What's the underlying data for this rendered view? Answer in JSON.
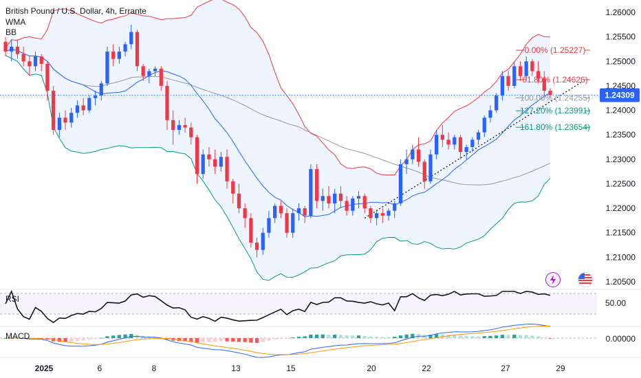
{
  "header": {
    "symbol": "British Pound / U.S. Dollar, 4h, Errante",
    "ind1": "WMA",
    "ind2": "BB"
  },
  "price_axis": {
    "ticks": [
      "1.26000",
      "1.25500",
      "1.25000",
      "1.24500",
      "1.24000",
      "1.23500",
      "1.23000",
      "1.22500",
      "1.22000",
      "1.21500",
      "1.21000",
      "1.20500"
    ],
    "current": "1.24309"
  },
  "time_axis": {
    "ticks": [
      "2025",
      "6",
      "8",
      "13",
      "15",
      "20",
      "22",
      "27",
      "29"
    ]
  },
  "fib": [
    {
      "label": "0.00% (1.25227)",
      "level": 1.25227,
      "color": "#f23645"
    },
    {
      "label": "61.80% (1.24626)",
      "level": 1.24626,
      "color": "#f23645"
    },
    {
      "label": "100.00% (1.24255)",
      "level": 1.24255,
      "color": "#9598a1"
    },
    {
      "label": "127.20% (1.23991)",
      "level": 1.23991,
      "color": "#089981"
    },
    {
      "label": "161.80% (1.23654)",
      "level": 1.23654,
      "color": "#089981"
    }
  ],
  "rsi": {
    "label": "RSI",
    "tick": "50.00"
  },
  "macd": {
    "label": "MACD",
    "tick": "0.00000"
  },
  "colors": {
    "up": "#2962ff",
    "down": "#f23645",
    "bb_upper": "#f23645",
    "bb_lower": "#089981",
    "wma": "#2962ff",
    "ma_long": "#9598a1",
    "bb_fill": "#e3effd"
  },
  "chart_data": {
    "type": "candlestick",
    "ylim": [
      1.205,
      1.262
    ],
    "candles": [
      [
        1.254,
        1.255,
        1.251,
        1.252
      ],
      [
        1.252,
        1.2545,
        1.25,
        1.253
      ],
      [
        1.253,
        1.2545,
        1.2505,
        1.2515
      ],
      [
        1.2515,
        1.253,
        1.249,
        1.25
      ],
      [
        1.25,
        1.251,
        1.247,
        1.249
      ],
      [
        1.249,
        1.252,
        1.248,
        1.251
      ],
      [
        1.251,
        1.2515,
        1.248,
        1.2495
      ],
      [
        1.2495,
        1.25,
        1.242,
        1.244
      ],
      [
        1.244,
        1.245,
        1.235,
        1.236
      ],
      [
        1.236,
        1.2395,
        1.2345,
        1.2385
      ],
      [
        1.2385,
        1.24,
        1.236,
        1.2375
      ],
      [
        1.2375,
        1.2405,
        1.2365,
        1.2395
      ],
      [
        1.2395,
        1.242,
        1.2385,
        1.241
      ],
      [
        1.241,
        1.2425,
        1.239,
        1.24
      ],
      [
        1.24,
        1.243,
        1.2395,
        1.2425
      ],
      [
        1.2425,
        1.244,
        1.241,
        1.243
      ],
      [
        1.243,
        1.246,
        1.242,
        1.2455
      ],
      [
        1.2455,
        1.253,
        1.245,
        1.252
      ],
      [
        1.252,
        1.2535,
        1.249,
        1.2505
      ],
      [
        1.2505,
        1.253,
        1.2495,
        1.252
      ],
      [
        1.252,
        1.254,
        1.251,
        1.2535
      ],
      [
        1.2535,
        1.2575,
        1.2525,
        1.256
      ],
      [
        1.256,
        1.2565,
        1.248,
        1.249
      ],
      [
        1.249,
        1.2495,
        1.246,
        1.247
      ],
      [
        1.247,
        1.2485,
        1.2455,
        1.248
      ],
      [
        1.248,
        1.249,
        1.247,
        1.2485
      ],
      [
        1.2485,
        1.249,
        1.244,
        1.245
      ],
      [
        1.245,
        1.246,
        1.236,
        1.238
      ],
      [
        1.238,
        1.24,
        1.233,
        1.236
      ],
      [
        1.236,
        1.238,
        1.235,
        1.237
      ],
      [
        1.237,
        1.2385,
        1.2355,
        1.2365
      ],
      [
        1.2365,
        1.2375,
        1.233,
        1.2345
      ],
      [
        1.2345,
        1.235,
        1.225,
        1.227
      ],
      [
        1.227,
        1.232,
        1.226,
        1.231
      ],
      [
        1.231,
        1.2325,
        1.2285,
        1.23
      ],
      [
        1.23,
        1.232,
        1.227,
        1.2285
      ],
      [
        1.2285,
        1.2315,
        1.2275,
        1.2305
      ],
      [
        1.2305,
        1.232,
        1.224,
        1.2255
      ],
      [
        1.2255,
        1.226,
        1.221,
        1.223
      ],
      [
        1.223,
        1.225,
        1.219,
        1.22
      ],
      [
        1.22,
        1.221,
        1.216,
        1.218
      ],
      [
        1.218,
        1.219,
        1.212,
        1.213
      ],
      [
        1.213,
        1.214,
        1.21,
        1.2115
      ],
      [
        1.2115,
        1.216,
        1.2105,
        1.215
      ],
      [
        1.215,
        1.2195,
        1.214,
        1.218
      ],
      [
        1.218,
        1.221,
        1.217,
        1.2205
      ],
      [
        1.2205,
        1.2215,
        1.218,
        1.219
      ],
      [
        1.219,
        1.22,
        1.214,
        1.215
      ],
      [
        1.215,
        1.22,
        1.214,
        1.219
      ],
      [
        1.219,
        1.221,
        1.2175,
        1.22
      ],
      [
        1.22,
        1.2205,
        1.217,
        1.2185
      ],
      [
        1.2185,
        1.229,
        1.218,
        1.228
      ],
      [
        1.228,
        1.229,
        1.22,
        1.2215
      ],
      [
        1.2215,
        1.224,
        1.2195,
        1.2225
      ],
      [
        1.2225,
        1.2245,
        1.22,
        1.221
      ],
      [
        1.221,
        1.224,
        1.219,
        1.223
      ],
      [
        1.223,
        1.2245,
        1.22,
        1.2215
      ],
      [
        1.2215,
        1.2225,
        1.2185,
        1.2195
      ],
      [
        1.2195,
        1.2225,
        1.2185,
        1.222
      ],
      [
        1.222,
        1.2235,
        1.22,
        1.2225
      ],
      [
        1.2225,
        1.223,
        1.219,
        1.22
      ],
      [
        1.22,
        1.2205,
        1.217,
        1.218
      ],
      [
        1.218,
        1.2195,
        1.2165,
        1.219
      ],
      [
        1.219,
        1.22,
        1.217,
        1.2185
      ],
      [
        1.2185,
        1.22,
        1.2175,
        1.2195
      ],
      [
        1.2195,
        1.2215,
        1.218,
        1.221
      ],
      [
        1.221,
        1.23,
        1.2205,
        1.229
      ],
      [
        1.229,
        1.232,
        1.227,
        1.23
      ],
      [
        1.23,
        1.233,
        1.229,
        1.232
      ],
      [
        1.232,
        1.2345,
        1.2285,
        1.2295
      ],
      [
        1.2295,
        1.23,
        1.224,
        1.2255
      ],
      [
        1.2255,
        1.232,
        1.225,
        1.231
      ],
      [
        1.231,
        1.236,
        1.23,
        1.235
      ],
      [
        1.235,
        1.237,
        1.2325,
        1.234
      ],
      [
        1.234,
        1.2355,
        1.232,
        1.233
      ],
      [
        1.233,
        1.235,
        1.232,
        1.2345
      ],
      [
        1.2345,
        1.235,
        1.23,
        1.2315
      ],
      [
        1.2315,
        1.233,
        1.23,
        1.2325
      ],
      [
        1.2325,
        1.2345,
        1.2315,
        1.234
      ],
      [
        1.234,
        1.236,
        1.233,
        1.2355
      ],
      [
        1.2355,
        1.239,
        1.2345,
        1.2385
      ],
      [
        1.2385,
        1.241,
        1.2375,
        1.24
      ],
      [
        1.24,
        1.2435,
        1.2395,
        1.243
      ],
      [
        1.243,
        1.248,
        1.242,
        1.247
      ],
      [
        1.247,
        1.248,
        1.244,
        1.245
      ],
      [
        1.245,
        1.25,
        1.2445,
        1.249
      ],
      [
        1.249,
        1.25,
        1.246,
        1.247
      ],
      [
        1.247,
        1.251,
        1.246,
        1.25
      ],
      [
        1.25,
        1.2505,
        1.247,
        1.248
      ],
      [
        1.248,
        1.25,
        1.2455,
        1.2465
      ],
      [
        1.2465,
        1.248,
        1.243,
        1.244
      ],
      [
        1.244,
        1.2445,
        1.2425,
        1.2431
      ]
    ]
  }
}
